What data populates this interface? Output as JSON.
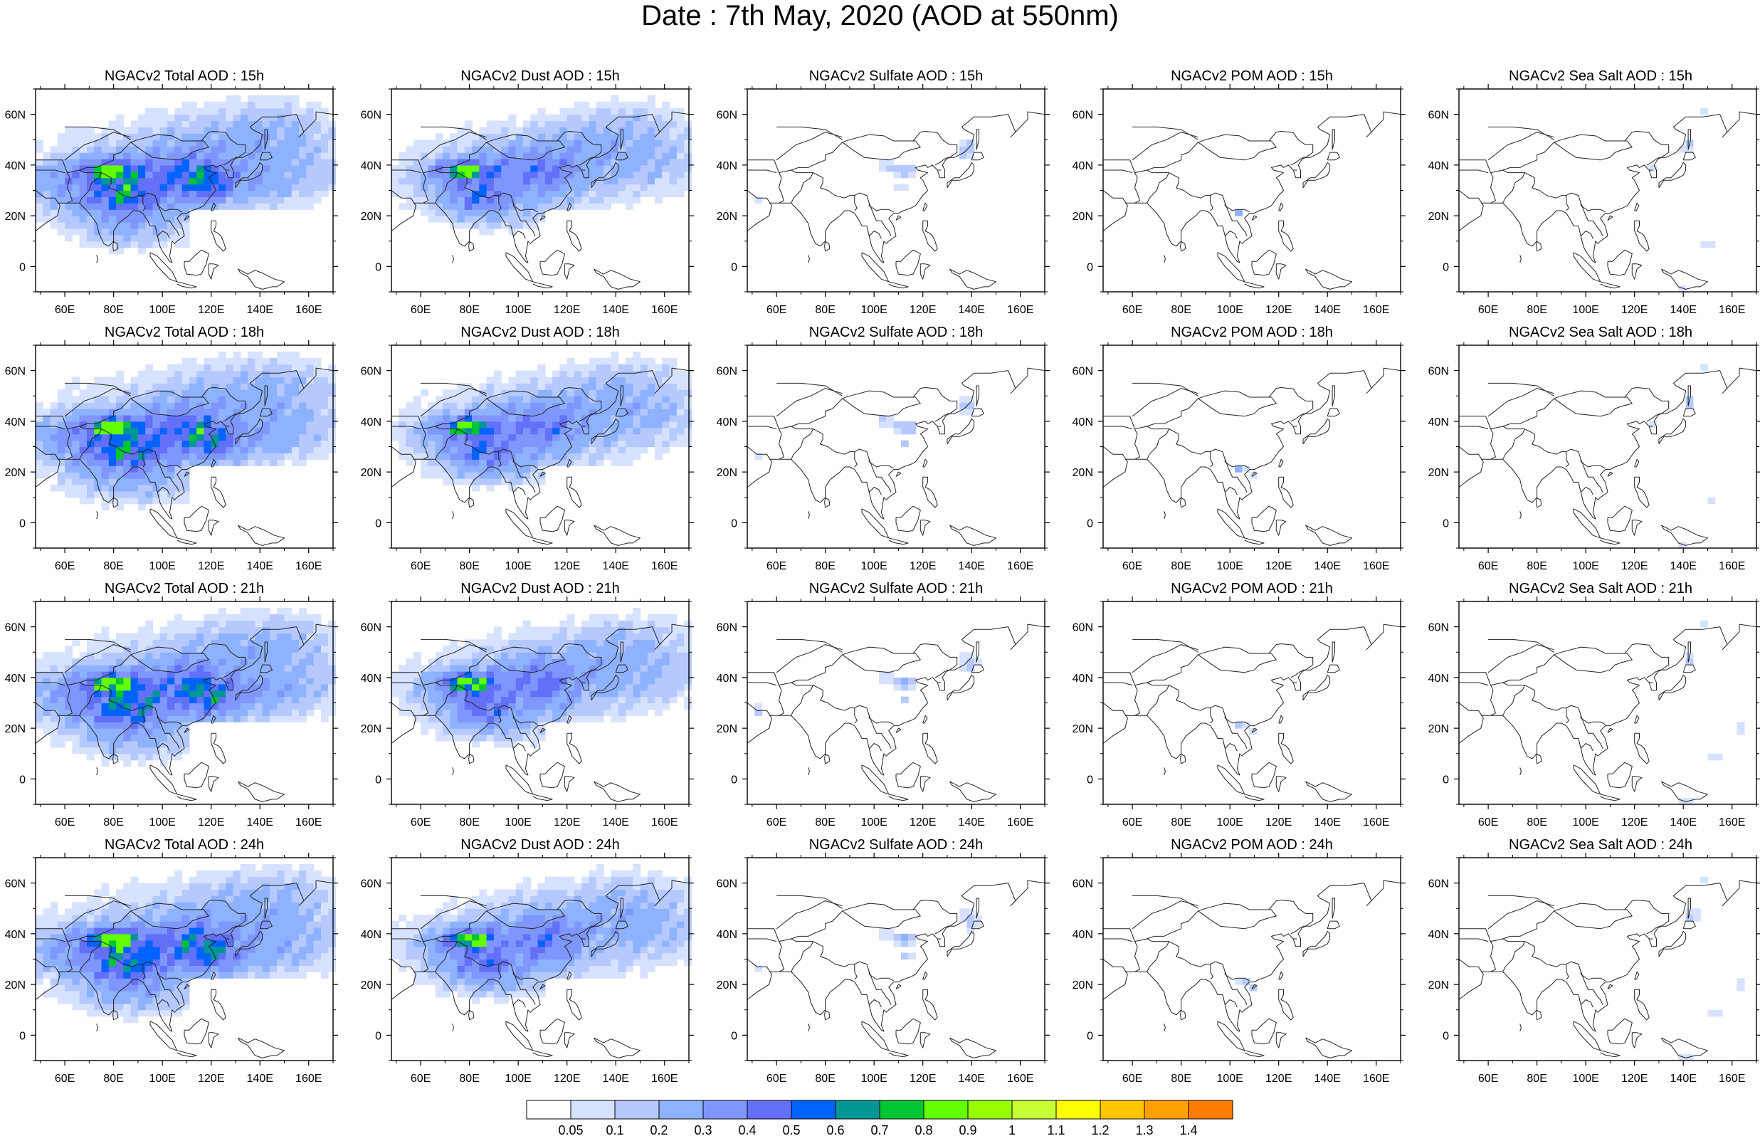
{
  "title": "Date : 7th May, 2020 (AOD at 550nm)",
  "panel_titles": [
    [
      "NGACv2 Total AOD : 15h",
      "NGACv2 Dust AOD : 15h",
      "NGACv2 Sulfate AOD : 15h",
      "NGACv2 POM AOD : 15h",
      "NGACv2 Sea Salt AOD : 15h"
    ],
    [
      "NGACv2 Total AOD : 18h",
      "NGACv2 Dust AOD : 18h",
      "NGACv2 Sulfate AOD : 18h",
      "NGACv2 POM AOD : 18h",
      "NGACv2 Sea Salt AOD : 18h"
    ],
    [
      "NGACv2 Total AOD : 21h",
      "NGACv2 Dust AOD : 21h",
      "NGACv2 Sulfate AOD : 21h",
      "NGACv2 POM AOD : 21h",
      "NGACv2 Sea Salt AOD : 21h"
    ],
    [
      "NGACv2 Total AOD : 24h",
      "NGACv2 Dust AOD : 24h",
      "NGACv2 Sulfate AOD : 24h",
      "NGACv2 POM AOD : 24h",
      "NGACv2 Sea Salt  AOD : 24h"
    ]
  ],
  "x_tick_labels": [
    "60E",
    "80E",
    "100E",
    "120E",
    "140E",
    "160E"
  ],
  "x_tick_values": [
    60,
    80,
    100,
    120,
    140,
    160
  ],
  "y_tick_labels": [
    "60N",
    "40N",
    "20N",
    "0"
  ],
  "y_tick_values": [
    60,
    40,
    20,
    0
  ],
  "lon_range": [
    48,
    170
  ],
  "lat_range": [
    -10,
    70
  ],
  "colorbar": {
    "labels": [
      "0.05",
      "0.1",
      "0.2",
      "0.3",
      "0.4",
      "0.5",
      "0.6",
      "0.7",
      "0.8",
      "0.9",
      "1",
      "1.1",
      "1.2",
      "1.3",
      "1.4"
    ],
    "colors": [
      "#ffffff",
      "#d6e2ff",
      "#b5c9ff",
      "#8eb2ff",
      "#7f96ff",
      "#6370f8",
      "#0063ff",
      "#009696",
      "#00c633",
      "#63ff00",
      "#96ff00",
      "#c6ff33",
      "#ffff00",
      "#ffc600",
      "#ffa000",
      "#ff7c00",
      "#ff1900"
    ]
  }
}
